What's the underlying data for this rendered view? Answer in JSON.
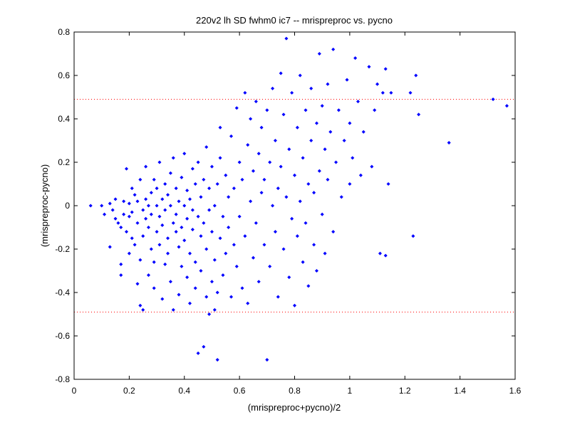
{
  "chart_data": {
    "type": "scatter",
    "title": "220v2 lh SD fwhm0 ic7 -- mrispreproc vs. pycno",
    "xlabel": "(mrispreproc+pycno)/2",
    "ylabel": "(mrispreproc-pycno)",
    "xlim": [
      0,
      1.6
    ],
    "ylim": [
      -0.8,
      0.8
    ],
    "xticks": [
      0,
      0.2,
      0.4,
      0.6,
      0.8,
      1,
      1.2,
      1.4,
      1.6
    ],
    "xtick_labels": [
      "0",
      "0.2",
      "0.4",
      "0.6",
      "0.8",
      "1",
      "1.2",
      "1.4",
      "1.6"
    ],
    "yticks": [
      -0.8,
      -0.6,
      -0.4,
      -0.2,
      0,
      0.2,
      0.4,
      0.6,
      0.8
    ],
    "ytick_labels": [
      "-0.8",
      "-0.6",
      "-0.4",
      "-0.2",
      "0",
      "0.2",
      "0.4",
      "0.6",
      "0.8"
    ],
    "grid": false,
    "marker_color": "#0000ff",
    "reference_line_color": "#ff0000",
    "reference_lines": [
      0.49,
      -0.49
    ],
    "points": [
      [
        0.06,
        0.0
      ],
      [
        0.1,
        0.0
      ],
      [
        0.11,
        -0.04
      ],
      [
        0.13,
        0.01
      ],
      [
        0.13,
        -0.19
      ],
      [
        0.14,
        -0.02
      ],
      [
        0.15,
        0.03
      ],
      [
        0.15,
        -0.06
      ],
      [
        0.16,
        -0.08
      ],
      [
        0.17,
        -0.1
      ],
      [
        0.17,
        -0.27
      ],
      [
        0.17,
        -0.32
      ],
      [
        0.18,
        -0.04
      ],
      [
        0.18,
        0.02
      ],
      [
        0.19,
        -0.12
      ],
      [
        0.19,
        0.17
      ],
      [
        0.2,
        -0.05
      ],
      [
        0.2,
        0.01
      ],
      [
        0.2,
        -0.22
      ],
      [
        0.21,
        -0.15
      ],
      [
        0.21,
        -0.03
      ],
      [
        0.21,
        0.08
      ],
      [
        0.22,
        -0.18
      ],
      [
        0.22,
        0.05
      ],
      [
        0.23,
        -0.08
      ],
      [
        0.23,
        -0.36
      ],
      [
        0.23,
        0.02
      ],
      [
        0.24,
        -0.25
      ],
      [
        0.24,
        -0.46
      ],
      [
        0.24,
        0.12
      ],
      [
        0.25,
        -0.48
      ],
      [
        0.25,
        -0.02
      ],
      [
        0.25,
        -0.14
      ],
      [
        0.26,
        0.03
      ],
      [
        0.26,
        -0.06
      ],
      [
        0.26,
        0.18
      ],
      [
        0.27,
        -0.1
      ],
      [
        0.27,
        0.0
      ],
      [
        0.27,
        -0.32
      ],
      [
        0.28,
        -0.2
      ],
      [
        0.28,
        0.06
      ],
      [
        0.28,
        -0.04
      ],
      [
        0.29,
        0.12
      ],
      [
        0.29,
        -0.26
      ],
      [
        0.29,
        -0.38
      ],
      [
        0.3,
        0.0
      ],
      [
        0.3,
        -0.12
      ],
      [
        0.3,
        0.08
      ],
      [
        0.31,
        -0.05
      ],
      [
        0.31,
        -0.18
      ],
      [
        0.31,
        0.2
      ],
      [
        0.32,
        -0.09
      ],
      [
        0.32,
        0.03
      ],
      [
        0.32,
        -0.43
      ],
      [
        0.33,
        -0.27
      ],
      [
        0.33,
        0.1
      ],
      [
        0.33,
        -0.02
      ],
      [
        0.34,
        -0.15
      ],
      [
        0.34,
        0.05
      ],
      [
        0.34,
        -0.22
      ],
      [
        0.35,
        0.0
      ],
      [
        0.35,
        -0.35
      ],
      [
        0.35,
        0.15
      ],
      [
        0.36,
        -0.08
      ],
      [
        0.36,
        -0.48
      ],
      [
        0.36,
        0.22
      ],
      [
        0.37,
        -0.04
      ],
      [
        0.37,
        -0.12
      ],
      [
        0.37,
        0.08
      ],
      [
        0.38,
        -0.19
      ],
      [
        0.38,
        0.02
      ],
      [
        0.38,
        -0.41
      ],
      [
        0.39,
        -0.1
      ],
      [
        0.39,
        0.13
      ],
      [
        0.39,
        -0.28
      ],
      [
        0.4,
        0.0
      ],
      [
        0.4,
        -0.16
      ],
      [
        0.4,
        0.24
      ],
      [
        0.41,
        -0.06
      ],
      [
        0.41,
        -0.33
      ],
      [
        0.41,
        0.07
      ],
      [
        0.42,
        -0.22
      ],
      [
        0.42,
        0.03
      ],
      [
        0.42,
        -0.45
      ],
      [
        0.43,
        -0.11
      ],
      [
        0.43,
        0.17
      ],
      [
        0.43,
        -0.02
      ],
      [
        0.44,
        -0.26
      ],
      [
        0.44,
        0.1
      ],
      [
        0.44,
        -0.38
      ],
      [
        0.45,
        -0.05
      ],
      [
        0.45,
        -0.68
      ],
      [
        0.45,
        0.2
      ],
      [
        0.46,
        -0.14
      ],
      [
        0.46,
        0.04
      ],
      [
        0.46,
        -0.3
      ],
      [
        0.47,
        -0.65
      ],
      [
        0.47,
        0.12
      ],
      [
        0.47,
        -0.08
      ],
      [
        0.48,
        -0.2
      ],
      [
        0.48,
        0.27
      ],
      [
        0.48,
        -0.42
      ],
      [
        0.49,
        -0.02
      ],
      [
        0.49,
        -0.5
      ],
      [
        0.49,
        0.08
      ],
      [
        0.5,
        -0.35
      ],
      [
        0.5,
        -0.12
      ],
      [
        0.5,
        0.18
      ],
      [
        0.51,
        -0.48
      ],
      [
        0.51,
        0.0
      ],
      [
        0.51,
        -0.25
      ],
      [
        0.52,
        0.1
      ],
      [
        0.52,
        -0.71
      ],
      [
        0.52,
        -0.4
      ],
      [
        0.53,
        0.22
      ],
      [
        0.53,
        -0.15
      ],
      [
        0.53,
        0.36
      ],
      [
        0.54,
        -0.05
      ],
      [
        0.54,
        -0.32
      ],
      [
        0.55,
        0.14
      ],
      [
        0.55,
        -0.22
      ],
      [
        0.56,
        0.04
      ],
      [
        0.56,
        -0.1
      ],
      [
        0.57,
        0.32
      ],
      [
        0.57,
        -0.42
      ],
      [
        0.58,
        0.08
      ],
      [
        0.58,
        -0.18
      ],
      [
        0.59,
        0.45
      ],
      [
        0.59,
        -0.28
      ],
      [
        0.6,
        0.2
      ],
      [
        0.6,
        -0.05
      ],
      [
        0.61,
        -0.38
      ],
      [
        0.61,
        0.12
      ],
      [
        0.62,
        0.52
      ],
      [
        0.62,
        -0.14
      ],
      [
        0.63,
        0.28
      ],
      [
        0.63,
        -0.45
      ],
      [
        0.64,
        0.02
      ],
      [
        0.64,
        0.4
      ],
      [
        0.65,
        -0.24
      ],
      [
        0.65,
        0.16
      ],
      [
        0.66,
        -0.08
      ],
      [
        0.66,
        0.48
      ],
      [
        0.67,
        0.24
      ],
      [
        0.67,
        -0.35
      ],
      [
        0.68,
        0.06
      ],
      [
        0.68,
        0.36
      ],
      [
        0.69,
        -0.18
      ],
      [
        0.69,
        0.12
      ],
      [
        0.7,
        0.44
      ],
      [
        0.7,
        -0.71
      ],
      [
        0.71,
        -0.28
      ],
      [
        0.71,
        0.2
      ],
      [
        0.72,
        0.0
      ],
      [
        0.72,
        0.54
      ],
      [
        0.73,
        -0.12
      ],
      [
        0.73,
        0.3
      ],
      [
        0.74,
        -0.42
      ],
      [
        0.74,
        0.08
      ],
      [
        0.75,
        0.61
      ],
      [
        0.75,
        0.18
      ],
      [
        0.76,
        -0.2
      ],
      [
        0.76,
        0.42
      ],
      [
        0.77,
        0.77
      ],
      [
        0.77,
        0.04
      ],
      [
        0.78,
        -0.33
      ],
      [
        0.78,
        0.26
      ],
      [
        0.79,
        0.52
      ],
      [
        0.79,
        -0.06
      ],
      [
        0.8,
        0.14
      ],
      [
        0.8,
        -0.46
      ],
      [
        0.81,
        0.36
      ],
      [
        0.81,
        -0.14
      ],
      [
        0.82,
        0.6
      ],
      [
        0.82,
        0.02
      ],
      [
        0.83,
        -0.26
      ],
      [
        0.83,
        0.22
      ],
      [
        0.84,
        0.44
      ],
      [
        0.84,
        -0.08
      ],
      [
        0.85,
        0.1
      ],
      [
        0.85,
        -0.37
      ],
      [
        0.86,
        0.54
      ],
      [
        0.86,
        0.3
      ],
      [
        0.87,
        -0.18
      ],
      [
        0.87,
        0.06
      ],
      [
        0.88,
        0.38
      ],
      [
        0.88,
        -0.3
      ],
      [
        0.89,
        0.16
      ],
      [
        0.89,
        0.7
      ],
      [
        0.9,
        -0.04
      ],
      [
        0.9,
        0.46
      ],
      [
        0.91,
        0.26
      ],
      [
        0.91,
        -0.22
      ],
      [
        0.92,
        0.12
      ],
      [
        0.92,
        0.56
      ],
      [
        0.93,
        0.34
      ],
      [
        0.94,
        0.72
      ],
      [
        0.94,
        -0.12
      ],
      [
        0.95,
        0.2
      ],
      [
        0.96,
        0.44
      ],
      [
        0.97,
        0.04
      ],
      [
        0.98,
        0.3
      ],
      [
        0.99,
        0.58
      ],
      [
        1.0,
        0.1
      ],
      [
        1.0,
        0.38
      ],
      [
        1.01,
        0.22
      ],
      [
        1.02,
        0.68
      ],
      [
        1.03,
        0.48
      ],
      [
        1.04,
        0.14
      ],
      [
        1.05,
        0.34
      ],
      [
        1.07,
        0.64
      ],
      [
        1.08,
        0.18
      ],
      [
        1.09,
        0.44
      ],
      [
        1.1,
        0.56
      ],
      [
        1.11,
        -0.22
      ],
      [
        1.12,
        0.52
      ],
      [
        1.13,
        0.63
      ],
      [
        1.13,
        -0.23
      ],
      [
        1.14,
        0.1
      ],
      [
        1.15,
        0.52
      ],
      [
        1.22,
        0.52
      ],
      [
        1.23,
        -0.14
      ],
      [
        1.24,
        0.6
      ],
      [
        1.25,
        0.42
      ],
      [
        1.36,
        0.29
      ],
      [
        1.52,
        0.49
      ],
      [
        1.57,
        0.46
      ]
    ]
  }
}
